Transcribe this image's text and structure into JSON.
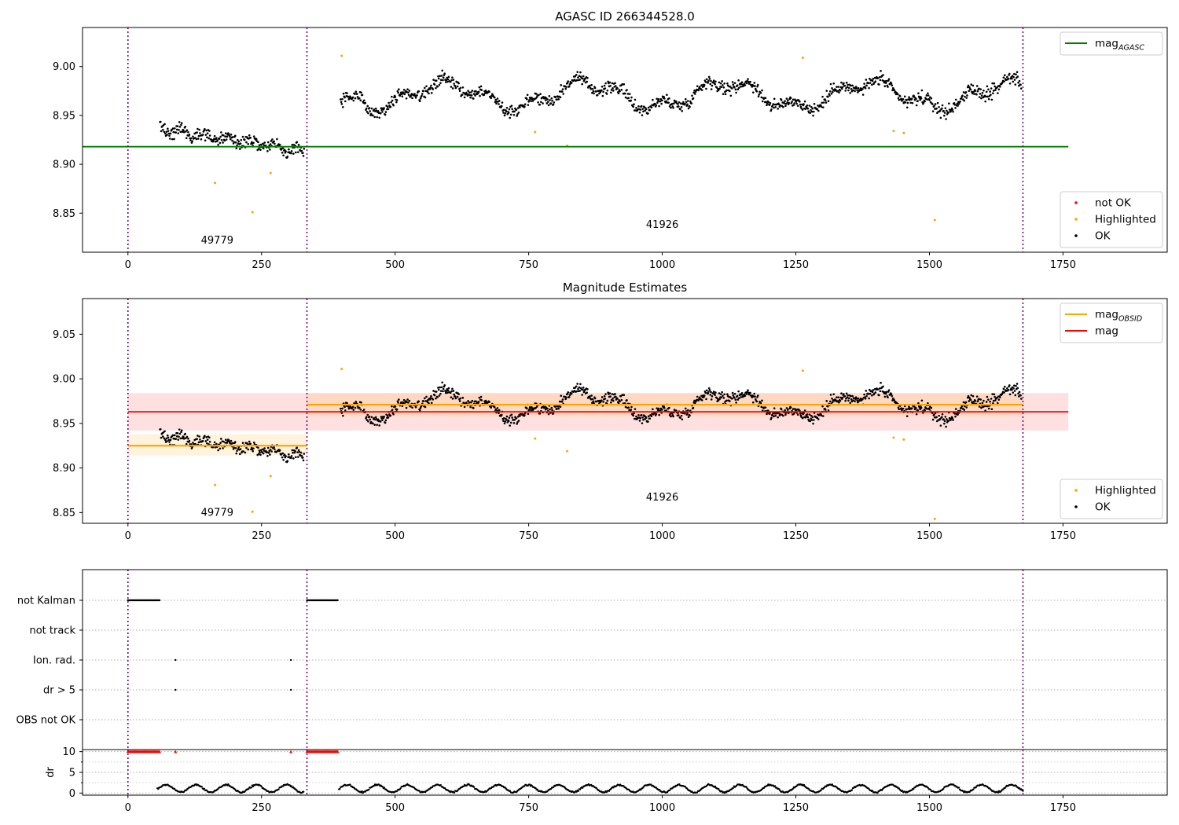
{
  "figure": {
    "x_ticks": [
      0,
      250,
      500,
      750,
      1000,
      1250,
      1500,
      1750
    ],
    "obs_boundaries": [
      0,
      335,
      1675
    ]
  },
  "chart_data": [
    {
      "type": "scatter",
      "title": "AGASC ID 266344528.0",
      "xlabel": "",
      "ylabel": "",
      "xlim": [
        -85,
        1945
      ],
      "ylim": [
        8.81,
        9.04
      ],
      "y_ticks": [
        "9.00",
        "8.95",
        "8.90",
        "8.85"
      ],
      "grid": false,
      "hline": {
        "label": "mag_AGASC",
        "value": 8.918,
        "color": "#008000"
      },
      "annotations": [
        {
          "text": "49779",
          "x": 167,
          "y": 8.822
        },
        {
          "text": "41926",
          "x": 1000,
          "y": 8.838
        }
      ],
      "legend_upper": {
        "placement": "upper-right",
        "entries": [
          {
            "label": "mag",
            "sub": "AGASC",
            "color": "#008000",
            "kind": "line"
          }
        ]
      },
      "legend_lower": {
        "placement": "lower-right",
        "entries": [
          {
            "label": "not OK",
            "color": "#ff0000",
            "kind": "marker"
          },
          {
            "label": "Highlighted",
            "color": "#ffa500",
            "kind": "marker"
          },
          {
            "label": "OK",
            "color": "#000000",
            "kind": "marker"
          }
        ]
      },
      "highlighted_points": [
        [
          163,
          8.881
        ],
        [
          233,
          8.851
        ],
        [
          267,
          8.891
        ],
        [
          400,
          9.011
        ],
        [
          762,
          8.933
        ],
        [
          822,
          8.919
        ],
        [
          1263,
          9.009
        ],
        [
          1433,
          8.934
        ],
        [
          1452,
          8.932
        ],
        [
          1510,
          8.843
        ]
      ]
    },
    {
      "type": "scatter",
      "title": "Magnitude Estimates",
      "xlabel": "",
      "ylabel": "",
      "xlim": [
        -85,
        1945
      ],
      "ylim": [
        8.838,
        9.09
      ],
      "y_ticks": [
        "9.05",
        "9.00",
        "8.95",
        "8.90",
        "8.85"
      ],
      "grid": false,
      "mag_line": {
        "label": "mag",
        "value": 8.963,
        "band": [
          8.942,
          8.984
        ],
        "color": "#ff0000",
        "x_range": [
          0,
          1760
        ]
      },
      "obsid_segments": [
        {
          "x": [
            0,
            335
          ],
          "value": 8.925,
          "band": [
            8.914,
            8.938
          ]
        },
        {
          "x": [
            335,
            1675
          ],
          "value": 8.971,
          "band": [
            8.958,
            8.984
          ]
        }
      ],
      "annotations": [
        {
          "text": "49779",
          "x": 167,
          "y": 8.85
        },
        {
          "text": "41926",
          "x": 1000,
          "y": 8.867
        }
      ],
      "legend_upper": {
        "placement": "upper-right",
        "entries": [
          {
            "label": "mag",
            "sub": "OBSID",
            "color": "#ffa500",
            "kind": "line"
          },
          {
            "label": "mag",
            "sub": "",
            "color": "#ff0000",
            "kind": "line"
          }
        ]
      },
      "legend_lower": {
        "placement": "lower-right",
        "entries": [
          {
            "label": "Highlighted",
            "color": "#ffa500",
            "kind": "marker"
          },
          {
            "label": "OK",
            "color": "#000000",
            "kind": "marker"
          }
        ]
      },
      "highlighted_points": [
        [
          163,
          8.881
        ],
        [
          233,
          8.851
        ],
        [
          267,
          8.891
        ],
        [
          400,
          9.011
        ],
        [
          762,
          8.933
        ],
        [
          822,
          8.919
        ],
        [
          1263,
          9.009
        ],
        [
          1433,
          8.934
        ],
        [
          1452,
          8.932
        ],
        [
          1510,
          8.843
        ]
      ]
    },
    {
      "type": "scatter",
      "title": "",
      "xlabel": "",
      "ylabel": "",
      "xlim": [
        -85,
        1945
      ],
      "grid": true,
      "flags": [
        {
          "label": "not Kalman",
          "points": "ranges",
          "ranges": [
            [
              0,
              60
            ],
            [
              335,
              393
            ]
          ]
        },
        {
          "label": "not track",
          "points": "none",
          "ranges": []
        },
        {
          "label": "Ion. rad.",
          "points": "single",
          "x": [
            89,
            305
          ]
        },
        {
          "label": "dr > 5",
          "points": "single",
          "x": [
            89,
            305
          ]
        },
        {
          "label": "OBS not OK",
          "points": "none",
          "ranges": []
        }
      ]
    },
    {
      "type": "scatter",
      "title": "",
      "xlabel": "",
      "ylabel": "dr",
      "xlim": [
        -85,
        1945
      ],
      "ylim": [
        -0.5,
        10.5
      ],
      "y_ticks": [
        "10",
        "5",
        "0"
      ],
      "grid": true,
      "clipped_markers": {
        "value": 10,
        "color": "#ff0000",
        "ranges": [
          [
            0,
            60
          ],
          [
            335,
            393
          ]
        ],
        "single_x": [
          89,
          305
        ]
      },
      "dr_ranges": [
        [
          55,
          330
        ],
        [
          395,
          1675
        ]
      ]
    }
  ]
}
